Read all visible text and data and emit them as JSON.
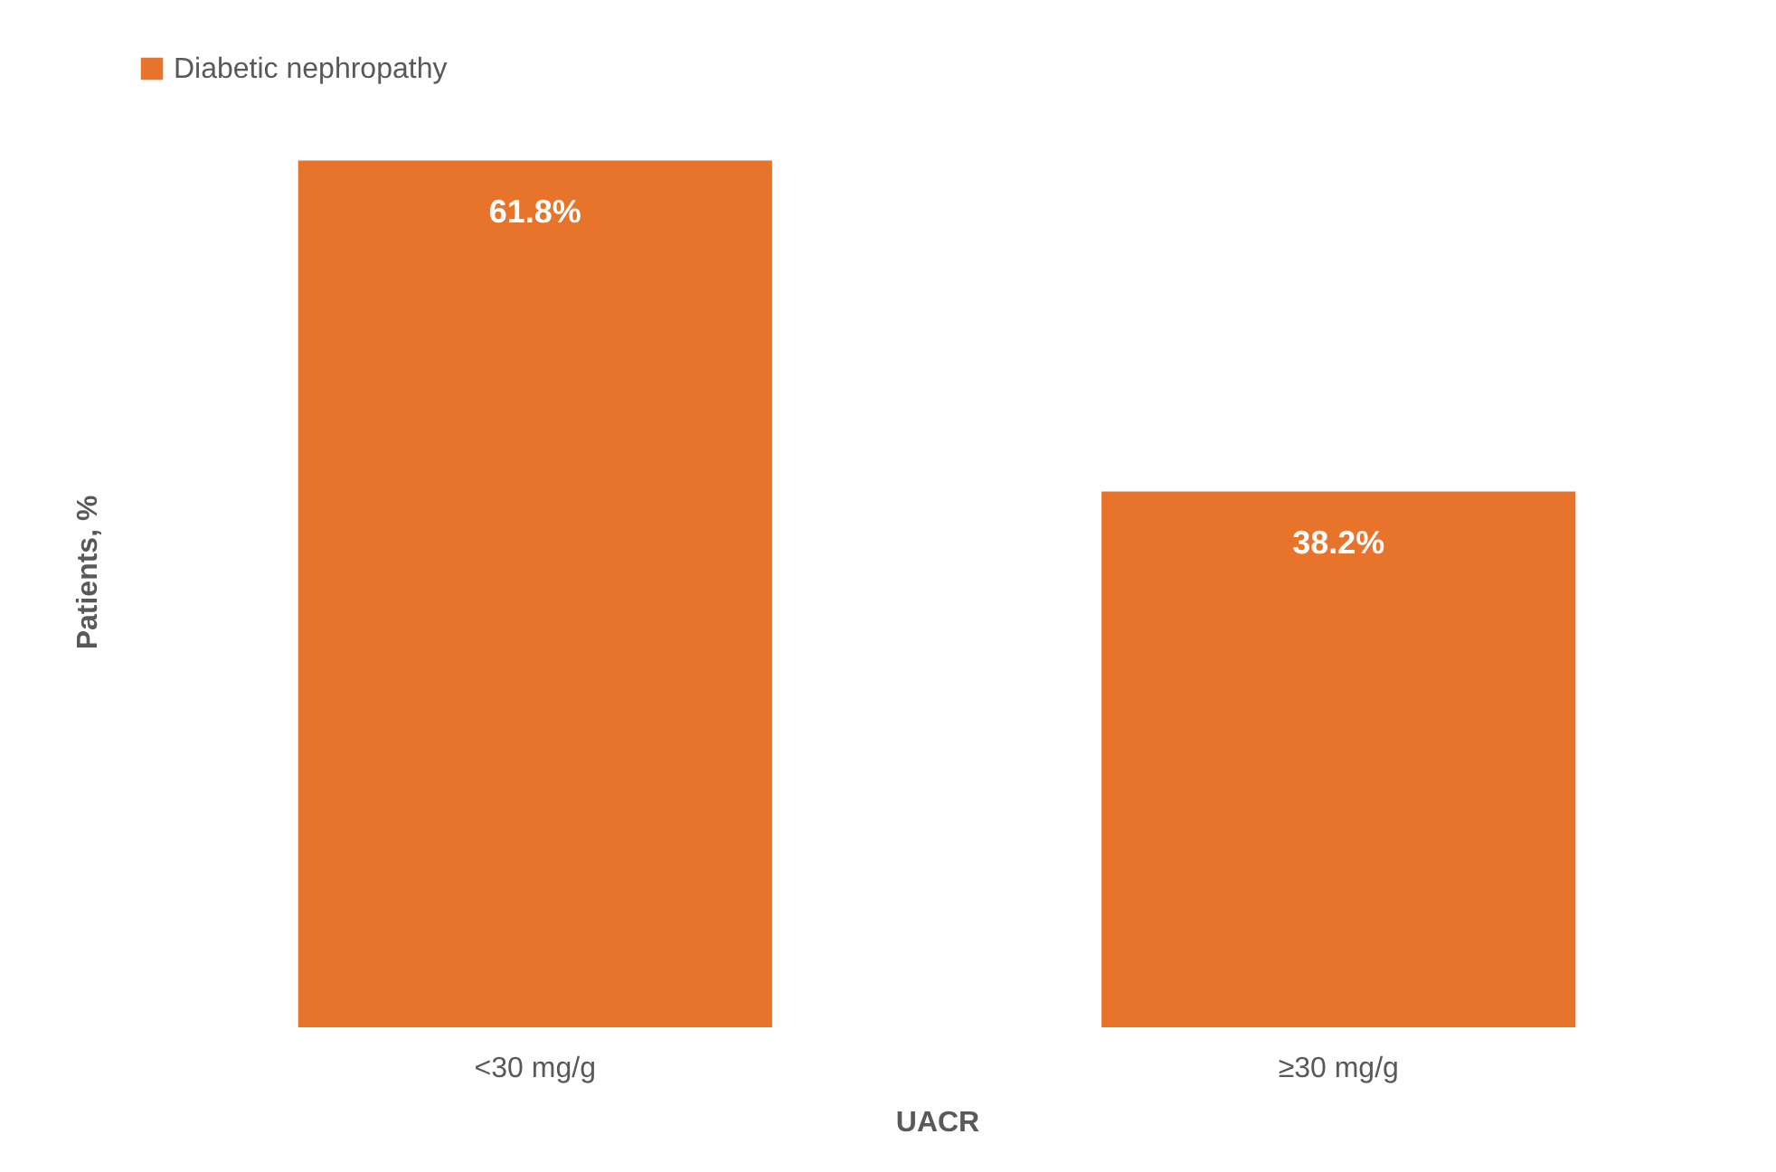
{
  "chart_data": {
    "type": "bar",
    "xlabel": "UACR",
    "ylabel": "Patients, %",
    "categories": [
      "<30 mg/g",
      "≥30 mg/g"
    ],
    "series": [
      {
        "name": "Diabetic nephropathy",
        "color": "#e8732a",
        "values": [
          61.8,
          38.2
        ],
        "value_labels": [
          "61.8%",
          "38.2%"
        ]
      }
    ],
    "legend": "top",
    "grid": false
  }
}
